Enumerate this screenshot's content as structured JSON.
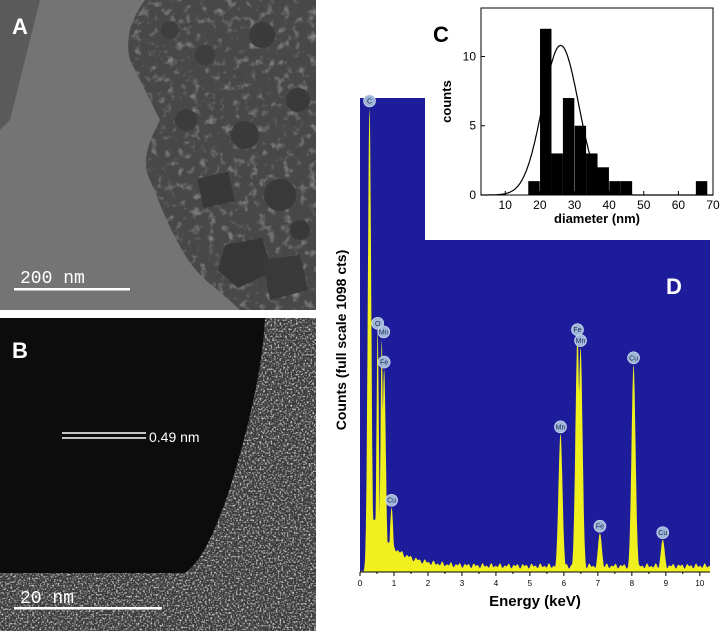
{
  "panels": {
    "a": {
      "letter": "A",
      "scale_bar": "200 nm"
    },
    "b": {
      "letter": "B",
      "scale_bar": "20 nm",
      "spacing": "0.49 nm"
    },
    "c": {
      "letter": "C"
    },
    "d": {
      "letter": "D"
    }
  },
  "chart_data": [
    {
      "type": "bar",
      "panel": "C",
      "title": "",
      "xlabel": "diameter (nm)",
      "ylabel": "counts",
      "xlim": [
        3,
        70
      ],
      "ylim": [
        0,
        13.5
      ],
      "xticks": [
        10,
        20,
        30,
        40,
        50,
        60,
        70
      ],
      "yticks": [
        0,
        5,
        10
      ],
      "bar_width": 3.3,
      "bars": [
        {
          "x": 18.3,
          "y": 1
        },
        {
          "x": 21.7,
          "y": 12
        },
        {
          "x": 25.0,
          "y": 3
        },
        {
          "x": 28.3,
          "y": 7
        },
        {
          "x": 31.7,
          "y": 5
        },
        {
          "x": 35.0,
          "y": 3
        },
        {
          "x": 38.3,
          "y": 2
        },
        {
          "x": 41.7,
          "y": 1
        },
        {
          "x": 45.0,
          "y": 1
        },
        {
          "x": 66.7,
          "y": 1
        }
      ],
      "fit_curve": {
        "type": "gaussian",
        "center": 26,
        "sigma": 5.2,
        "amplitude": 10.8
      }
    },
    {
      "type": "area",
      "panel": "D",
      "title": "",
      "xlabel": "Energy (keV)",
      "ylabel": "Counts (full scale 1098 cts)",
      "xlim": [
        0,
        10.3
      ],
      "ylim": [
        0,
        1098
      ],
      "xticks": [
        0,
        1,
        2,
        3,
        4,
        5,
        6,
        7,
        8,
        9,
        10
      ],
      "background": "#1d1d9c",
      "fill_color": "#f0f01e",
      "peaks": [
        {
          "label": "C",
          "energy": 0.28,
          "counts": 1075
        },
        {
          "label": "O",
          "energy": 0.52,
          "counts": 560
        },
        {
          "label": "Mn",
          "energy": 0.64,
          "counts": 540
        },
        {
          "label": "Fe",
          "energy": 0.71,
          "counts": 470
        },
        {
          "label": "Cu",
          "energy": 0.93,
          "counts": 150
        },
        {
          "label": "Mn",
          "energy": 5.9,
          "counts": 320
        },
        {
          "label": "Fe",
          "energy": 6.4,
          "counts": 545
        },
        {
          "label": "Mn",
          "energy": 6.49,
          "counts": 520
        },
        {
          "label": "Fe",
          "energy": 7.06,
          "counts": 90
        },
        {
          "label": "Cu",
          "energy": 8.05,
          "counts": 480
        },
        {
          "label": "Cu",
          "energy": 8.91,
          "counts": 75
        }
      ]
    }
  ]
}
